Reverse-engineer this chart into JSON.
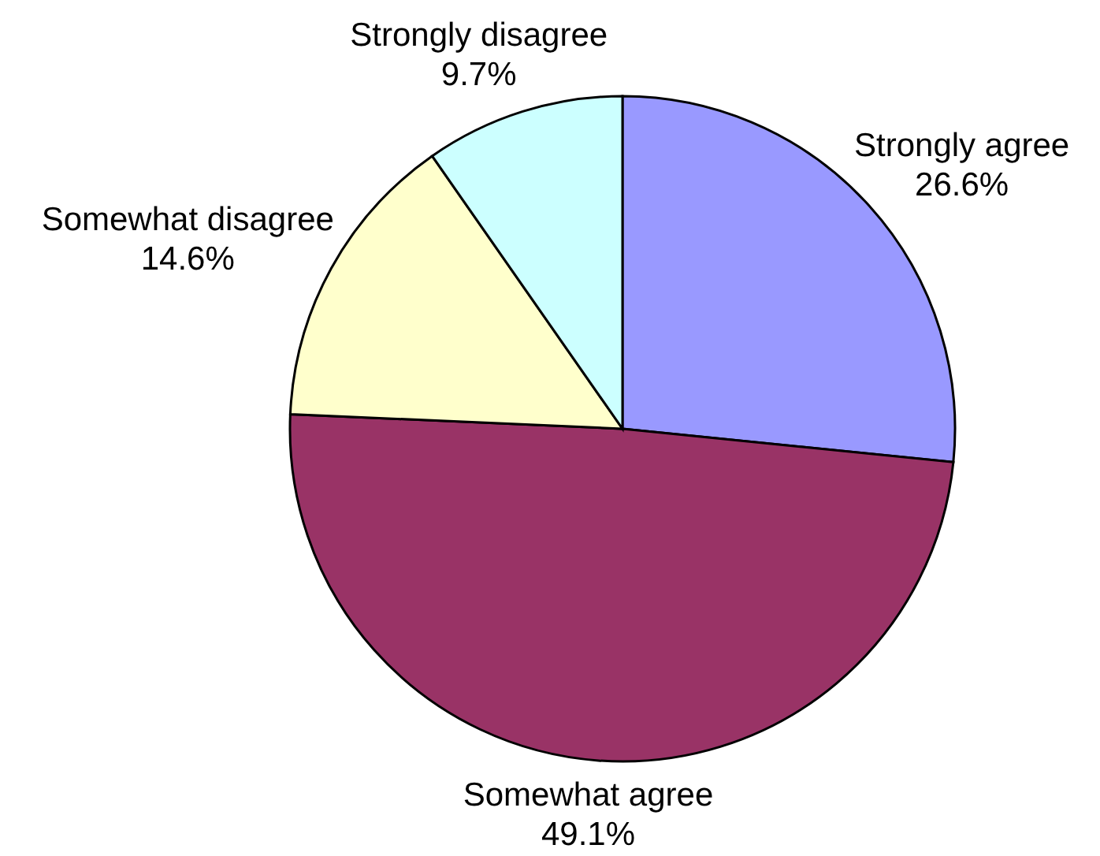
{
  "chart_data": {
    "type": "pie",
    "categories": [
      "Strongly agree",
      "Somewhat agree",
      "Somewhat disagree",
      "Strongly disagree"
    ],
    "values": [
      26.6,
      49.1,
      14.6,
      9.7
    ],
    "value_labels": [
      "26.6%",
      "49.1%",
      "14.6%",
      "9.7%"
    ],
    "colors": [
      "#9999ff",
      "#993366",
      "#ffffcc",
      "#ccffff"
    ]
  }
}
